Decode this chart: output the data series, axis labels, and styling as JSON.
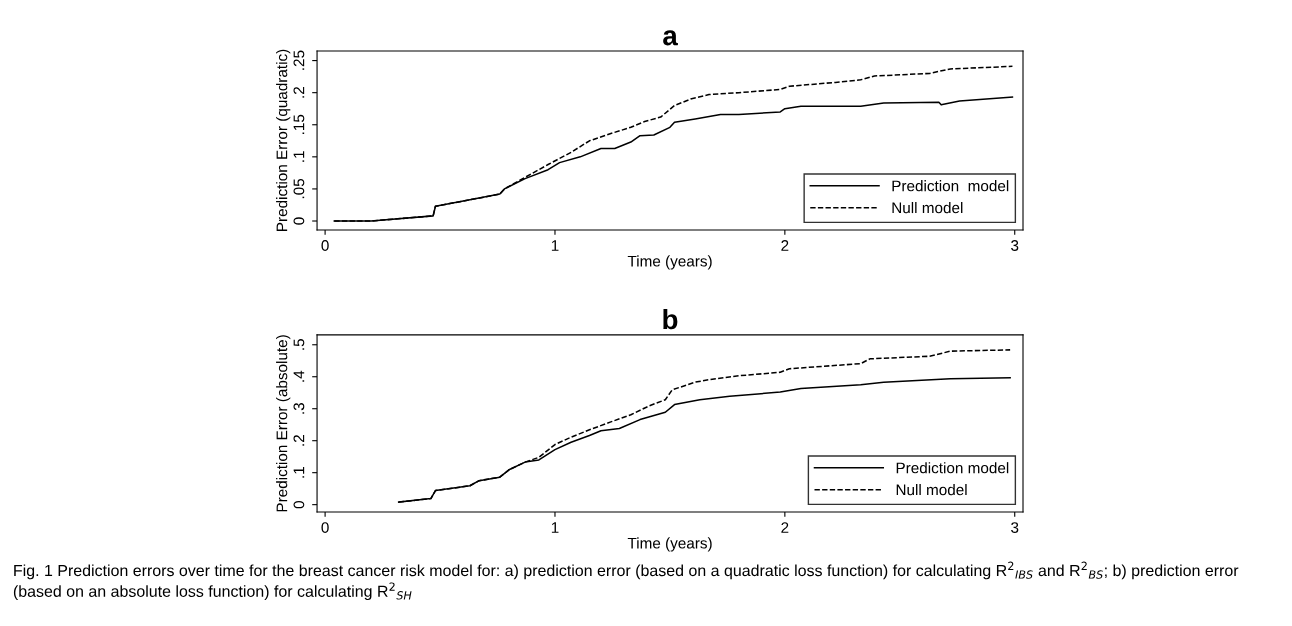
{
  "chart_data": [
    {
      "type": "line",
      "title": "a",
      "xlabel": "Time (years)",
      "ylabel": "Prediction Error (quadratic)",
      "xlim": [
        -0.035,
        3.036
      ],
      "xticks": [
        0,
        1,
        2,
        3
      ],
      "ylim": [
        -0.014,
        0.265
      ],
      "yticks": [
        0,
        {
          "value": 0.05,
          "label": ".05"
        },
        {
          "value": 0.1,
          "label": ".1"
        },
        {
          "value": 0.15,
          "label": ".15"
        },
        {
          "value": 0.2,
          "label": ".2"
        },
        {
          "value": 0.25,
          "label": ".25"
        }
      ],
      "grid": false,
      "legend": "bottom right",
      "series": [
        {
          "name": "Prediction  model",
          "color": "#000000",
          "line_style": "solid",
          "x": [
            0.04,
            0.2,
            0.47,
            0.48,
            0.63,
            0.76,
            0.78,
            0.87,
            0.97,
            1.02,
            1.11,
            1.2,
            1.26,
            1.33,
            1.37,
            1.43,
            1.5,
            1.52,
            1.61,
            1.72,
            1.8,
            1.98,
            2.0,
            2.07,
            2.33,
            2.43,
            2.67,
            2.68,
            2.76,
            2.99
          ],
          "values": [
            0,
            0,
            0.008,
            0.023,
            0.033,
            0.042,
            0.05,
            0.066,
            0.08,
            0.091,
            0.1,
            0.113,
            0.113,
            0.123,
            0.133,
            0.134,
            0.146,
            0.154,
            0.159,
            0.166,
            0.166,
            0.17,
            0.175,
            0.179,
            0.179,
            0.184,
            0.185,
            0.181,
            0.187,
            0.193
          ]
        },
        {
          "name": "Null model",
          "color": "#000000",
          "line_style": "dashed",
          "x": [
            0.04,
            0.2,
            0.47,
            0.48,
            0.63,
            0.76,
            0.78,
            0.87,
            0.97,
            1.07,
            1.15,
            1.24,
            1.33,
            1.39,
            1.46,
            1.52,
            1.59,
            1.67,
            1.8,
            1.98,
            2.02,
            2.22,
            2.33,
            2.39,
            2.63,
            2.72,
            2.99
          ],
          "values": [
            0,
            0,
            0.008,
            0.023,
            0.033,
            0.042,
            0.05,
            0.068,
            0.088,
            0.107,
            0.125,
            0.136,
            0.146,
            0.155,
            0.162,
            0.18,
            0.19,
            0.197,
            0.2,
            0.205,
            0.21,
            0.216,
            0.22,
            0.226,
            0.23,
            0.237,
            0.241
          ]
        }
      ]
    },
    {
      "type": "line",
      "title": "b",
      "xlabel": "Time (years)",
      "ylabel": "Prediction Error (absolute)",
      "xlim": [
        -0.035,
        3.036
      ],
      "xticks": [
        0,
        1,
        2,
        3
      ],
      "ylim": [
        -0.023,
        0.531
      ],
      "yticks": [
        0,
        {
          "value": 0.1,
          "label": ".1"
        },
        {
          "value": 0.2,
          "label": ".2"
        },
        {
          "value": 0.3,
          "label": ".3"
        },
        {
          "value": 0.4,
          "label": ".4"
        },
        {
          "value": 0.5,
          "label": ".5"
        }
      ],
      "grid": false,
      "legend": "bottom right",
      "annotations": [
        "Fig. 1 Prediction errors over time for the breast cancer risk model for: a) prediction error (based on a quadratic loss function) for calculating R$^{2}$$_{IBS}$ and R$^{2}$$_{BS}$; b) prediction error (based on an absolute loss function) for calculating R$^{2}$$_{SH}$"
      ],
      "series": [
        {
          "name": "Prediction model",
          "color": "#000000",
          "line_style": "solid",
          "x": [
            0.32,
            0.46,
            0.48,
            0.63,
            0.67,
            0.76,
            0.8,
            0.87,
            0.93,
            1.0,
            1.07,
            1.15,
            1.2,
            1.28,
            1.37,
            1.48,
            1.52,
            1.63,
            1.76,
            1.98,
            2.07,
            2.33,
            2.43,
            2.72,
            2.98
          ],
          "values": [
            0.008,
            0.019,
            0.044,
            0.059,
            0.075,
            0.086,
            0.109,
            0.133,
            0.14,
            0.172,
            0.195,
            0.216,
            0.231,
            0.238,
            0.266,
            0.289,
            0.313,
            0.328,
            0.339,
            0.352,
            0.363,
            0.375,
            0.383,
            0.394,
            0.397
          ]
        },
        {
          "name": "Null model",
          "color": "#000000",
          "line_style": "dashed",
          "x": [
            0.32,
            0.46,
            0.48,
            0.63,
            0.67,
            0.76,
            0.8,
            0.87,
            0.93,
            1.0,
            1.07,
            1.15,
            1.24,
            1.33,
            1.41,
            1.48,
            1.51,
            1.61,
            1.67,
            1.8,
            1.98,
            2.02,
            2.33,
            2.37,
            2.63,
            2.72,
            2.98
          ],
          "values": [
            0.008,
            0.019,
            0.044,
            0.059,
            0.075,
            0.086,
            0.109,
            0.133,
            0.148,
            0.188,
            0.211,
            0.234,
            0.258,
            0.281,
            0.309,
            0.328,
            0.359,
            0.383,
            0.391,
            0.403,
            0.414,
            0.425,
            0.441,
            0.456,
            0.464,
            0.48,
            0.484
          ]
        }
      ]
    }
  ]
}
